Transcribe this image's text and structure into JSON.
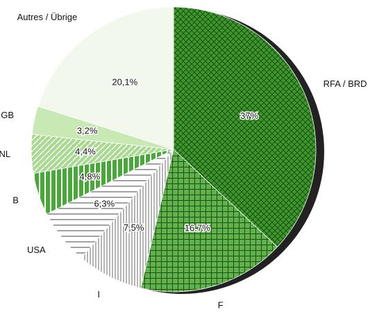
{
  "chart_data": {
    "type": "pie",
    "categories": [
      "RFA / BRD",
      "F",
      "I",
      "USA",
      "B",
      "NL",
      "GB",
      "Autres / Übrige"
    ],
    "values": [
      37,
      16.7,
      7.5,
      6.3,
      4.8,
      4.4,
      3.2,
      20.1
    ],
    "value_labels": [
      "37%",
      "16.7%",
      "7,5%",
      "6,3%",
      "4,8%",
      "4,4%",
      "3,2%",
      "20,1%"
    ],
    "colors": [
      "#3c9a2c",
      "#5fb34a",
      "#ffffff",
      "#ffffff",
      "#4aa83a",
      "#a9d890",
      "#c8e8b4",
      "#f2f9ec"
    ],
    "start_angle": 0,
    "direction": "clockwise"
  }
}
